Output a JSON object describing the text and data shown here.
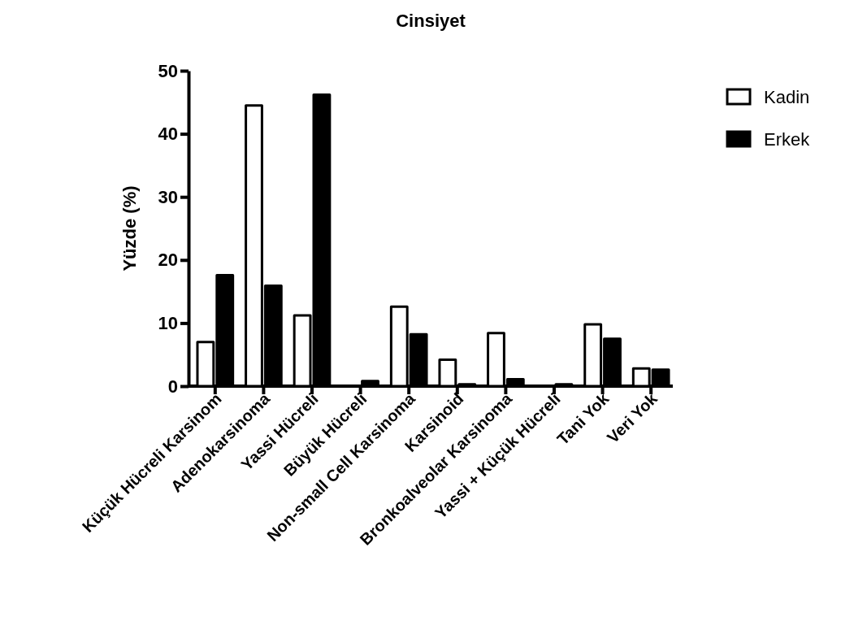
{
  "chart_data": {
    "type": "bar",
    "title": "Cinsiyet",
    "ylabel": "Yüzde (%)",
    "categories": [
      "Küçük Hücreli Karsinom",
      "Adenokarsinoma",
      "Yassi Hücreli",
      "Büyük Hücreli",
      "Non-small Cell Karsinoma",
      "Karsinoid",
      "Bronkoalveolar Karsinoma",
      "Yassi + Küçük Hücreli",
      "Tani Yok",
      "Veri Yok"
    ],
    "series": [
      {
        "name": "Kadin",
        "color": "#ffffff",
        "values": [
          7.0,
          44.5,
          11.2,
          0,
          12.6,
          4.2,
          8.4,
          0,
          9.8,
          2.8
        ]
      },
      {
        "name": "Erkek",
        "color": "#000000",
        "values": [
          17.6,
          15.9,
          46.2,
          0.8,
          8.2,
          0.3,
          1.1,
          0.3,
          7.5,
          2.6
        ]
      }
    ],
    "ylim": [
      0,
      50
    ],
    "yticks": [
      0,
      10,
      20,
      30,
      40,
      50
    ],
    "grid": false,
    "legend": "top right"
  }
}
